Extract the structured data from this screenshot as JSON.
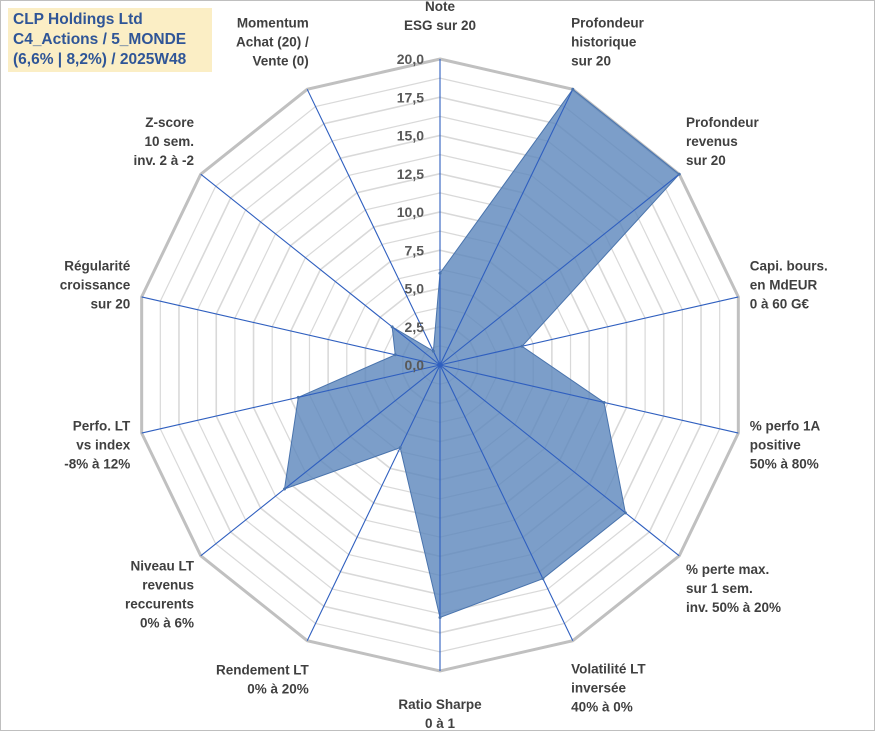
{
  "header": {
    "line1": "CLP Holdings Ltd",
    "line2": "C4_Actions / 5_MONDE",
    "line3": "(6,6% | 8,2%) / 2025W48"
  },
  "colors": {
    "fill": "#5b86bb",
    "stroke": "#4a74ad",
    "spokes": "#2f5fbf",
    "outer_grid": "#c0c0c0",
    "inner_grid": "#d9d9d9",
    "header_bg": "#fbeec5",
    "header_text": "#2f5597"
  },
  "chart_data": {
    "type": "radar",
    "rmin": 0,
    "rmax": 20,
    "ticks": [
      "0,0",
      "2,5",
      "5,0",
      "7,5",
      "10,0",
      "12,5",
      "15,0",
      "17,5",
      "20,0"
    ],
    "axes": [
      {
        "label": [
          "Note",
          "ESG sur 20"
        ],
        "value": 6
      },
      {
        "label": [
          "Profondeur",
          "historique",
          "sur 20"
        ],
        "value": 20
      },
      {
        "label": [
          "Profondeur",
          "revenus",
          "sur 20"
        ],
        "value": 20
      },
      {
        "label": [
          "Capi. bours.",
          "en MdEUR",
          "0 à 60 G€"
        ],
        "value": 5.5
      },
      {
        "label": [
          "% perfo 1A",
          "positive",
          "50% à 80%"
        ],
        "value": 11
      },
      {
        "label": [
          "% perte max.",
          "sur 1 sem.",
          "inv. 50% à 20%"
        ],
        "value": 15.5
      },
      {
        "label": [
          "Volatilité LT",
          "inversée",
          "40% à 0%"
        ],
        "value": 15.5
      },
      {
        "label": [
          "Ratio Sharpe",
          "0 à 1"
        ],
        "value": 16.5
      },
      {
        "label": [
          "Rendement LT",
          "0% à 20%"
        ],
        "value": 6
      },
      {
        "label": [
          "Niveau LT",
          "revenus",
          "reccurents",
          "0% à 6%"
        ],
        "value": 13
      },
      {
        "label": [
          "Perfo. LT",
          "vs index",
          "-8% à 12%"
        ],
        "value": 9.5
      },
      {
        "label": [
          "Régularité",
          "croissance",
          "sur 20"
        ],
        "value": 3
      },
      {
        "label": [
          "Z-score",
          "10 sem.",
          "inv. 2 à -2"
        ],
        "value": 4
      },
      {
        "label": [
          "Momentum",
          "Achat (20) /",
          "Vente (0)"
        ],
        "value": 1
      }
    ]
  }
}
